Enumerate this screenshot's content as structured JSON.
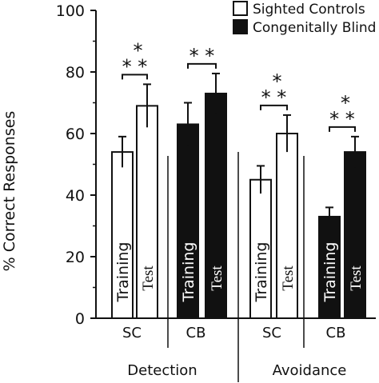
{
  "chart_data": {
    "type": "bar",
    "ylabel": "% Correct Responses",
    "ylim": [
      0,
      100
    ],
    "yticks": [
      "0",
      "20",
      "40",
      "60",
      "80",
      "100"
    ],
    "legend": {
      "placement": "top-right",
      "entries": [
        {
          "name": "Sighted Controls",
          "fill": "#ffffff"
        },
        {
          "name": "Congenitally Blind",
          "fill": "#111111"
        }
      ]
    },
    "tasks": [
      "Detection",
      "Avoidance"
    ],
    "groups": [
      "SC",
      "CB",
      "SC",
      "CB"
    ],
    "bars": [
      {
        "group": "SC",
        "task": "Detection",
        "phase": "Training",
        "value": 54,
        "error": 5,
        "fill": "#ffffff"
      },
      {
        "group": "SC",
        "task": "Detection",
        "phase": "Test",
        "value": 69,
        "error": 7,
        "fill": "#ffffff"
      },
      {
        "group": "CB",
        "task": "Detection",
        "phase": "Training",
        "value": 63,
        "error": 7,
        "fill": "#111111"
      },
      {
        "group": "CB",
        "task": "Detection",
        "phase": "Test",
        "value": 73,
        "error": 6.5,
        "fill": "#111111"
      },
      {
        "group": "SC",
        "task": "Avoidance",
        "phase": "Training",
        "value": 45,
        "error": 4.5,
        "fill": "#ffffff"
      },
      {
        "group": "SC",
        "task": "Avoidance",
        "phase": "Test",
        "value": 60,
        "error": 6,
        "fill": "#ffffff"
      },
      {
        "group": "CB",
        "task": "Avoidance",
        "phase": "Training",
        "value": 33,
        "error": 3,
        "fill": "#111111"
      },
      {
        "group": "CB",
        "task": "Avoidance",
        "phase": "Test",
        "value": 54,
        "error": 5,
        "fill": "#111111"
      }
    ],
    "significance": [
      {
        "pair": [
          0,
          1
        ],
        "label": "**",
        "label2": "*"
      },
      {
        "pair": [
          2,
          3
        ],
        "label": "**",
        "label2": ""
      },
      {
        "pair": [
          4,
          5
        ],
        "label": "**",
        "label2": "*"
      },
      {
        "pair": [
          6,
          7
        ],
        "label": "**",
        "label2": "*"
      }
    ]
  }
}
